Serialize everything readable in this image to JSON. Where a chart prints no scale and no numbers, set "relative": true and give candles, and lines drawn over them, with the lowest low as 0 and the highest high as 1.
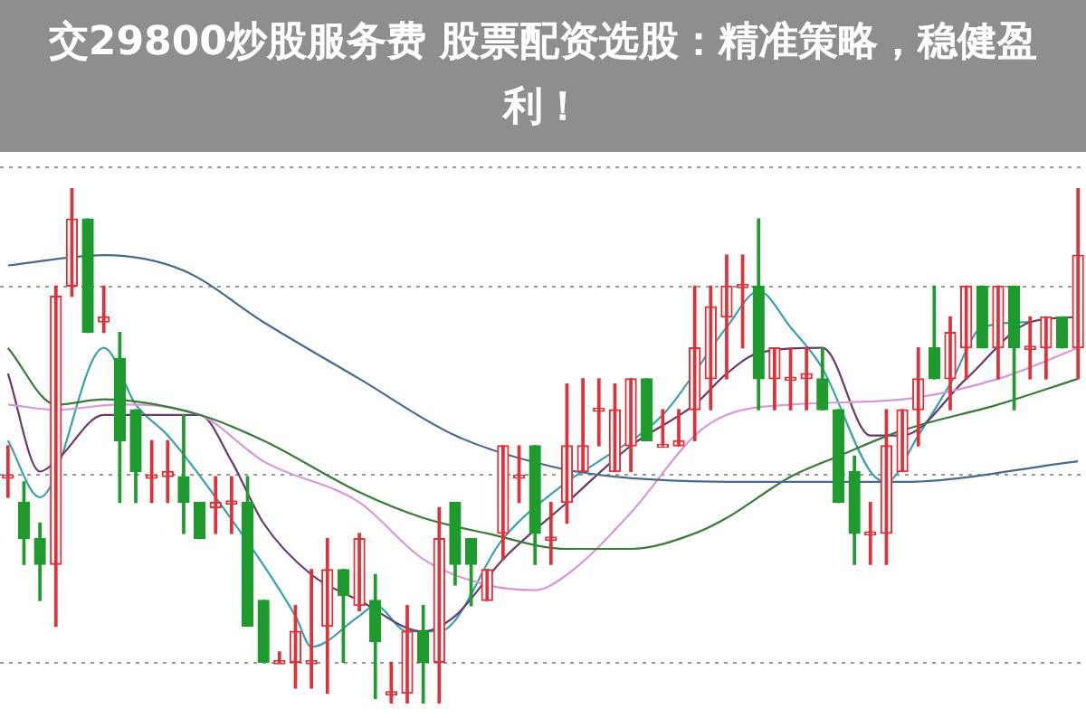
{
  "chart_data": {
    "type": "candlestick",
    "relative": true,
    "title": "交29800炒股服务费 股票配资选股：精准策略，稳健盈利！",
    "grid": "y",
    "marker": "none",
    "categories": [
      null,
      null,
      null,
      null,
      null,
      null,
      null,
      null,
      null,
      null,
      null,
      null,
      null,
      null,
      null,
      null,
      null,
      null,
      null,
      null,
      null,
      null,
      null,
      null,
      null,
      null,
      null,
      null,
      null,
      null,
      null,
      null,
      null,
      null,
      null,
      null,
      null,
      null,
      null,
      null,
      null,
      null,
      null,
      null,
      null,
      null,
      null,
      null,
      null,
      null,
      null,
      null,
      null,
      null,
      null,
      null,
      null,
      null,
      null,
      null,
      null,
      null,
      null,
      null,
      null,
      null,
      null,
      null
    ],
    "ohlc": [
      [
        0.44,
        0.5,
        0.4,
        0.44
      ],
      [
        0.39,
        0.43,
        0.27,
        0.32
      ],
      [
        0.32,
        0.35,
        0.2,
        0.27
      ],
      [
        0.27,
        0.81,
        0.15,
        0.79
      ],
      [
        0.81,
        1.0,
        0.79,
        0.94
      ],
      [
        0.94,
        0.94,
        0.72,
        0.72
      ],
      [
        0.74,
        0.81,
        0.72,
        0.75
      ],
      [
        0.67,
        0.72,
        0.39,
        0.51
      ],
      [
        0.57,
        0.57,
        0.39,
        0.45
      ],
      [
        0.44,
        0.51,
        0.39,
        0.44
      ],
      [
        0.44,
        0.51,
        0.39,
        0.45
      ],
      [
        0.44,
        0.56,
        0.33,
        0.39
      ],
      [
        0.39,
        0.39,
        0.32,
        0.32
      ],
      [
        0.38,
        0.44,
        0.33,
        0.39
      ],
      [
        0.39,
        0.44,
        0.33,
        0.39
      ],
      [
        0.39,
        0.44,
        0.15,
        0.15
      ],
      [
        0.2,
        0.2,
        0.08,
        0.08
      ],
      [
        0.08,
        0.1,
        0.08,
        0.08
      ],
      [
        0.08,
        0.19,
        0.03,
        0.14
      ],
      [
        0.08,
        0.26,
        0.03,
        0.08
      ],
      [
        0.15,
        0.32,
        0.02,
        0.26
      ],
      [
        0.26,
        0.26,
        0.08,
        0.21
      ],
      [
        0.19,
        0.33,
        0.18,
        0.32
      ],
      [
        0.2,
        0.25,
        0.01,
        0.12
      ],
      [
        0.02,
        0.08,
        0.0,
        0.02
      ],
      [
        0.02,
        0.19,
        0.0,
        0.14
      ],
      [
        0.14,
        0.19,
        0.0,
        0.08
      ],
      [
        0.08,
        0.38,
        0.0,
        0.32
      ],
      [
        0.39,
        0.39,
        0.23,
        0.27
      ],
      [
        0.32,
        0.32,
        0.19,
        0.27
      ],
      [
        0.2,
        0.26,
        0.2,
        0.26
      ],
      [
        0.33,
        0.5,
        0.28,
        0.5
      ],
      [
        0.44,
        0.5,
        0.39,
        0.44
      ],
      [
        0.5,
        0.5,
        0.27,
        0.33
      ],
      [
        0.32,
        0.39,
        0.27,
        0.32
      ],
      [
        0.39,
        0.62,
        0.35,
        0.5
      ],
      [
        0.45,
        0.63,
        0.45,
        0.5
      ],
      [
        0.57,
        0.63,
        0.5,
        0.57
      ],
      [
        0.45,
        0.62,
        0.45,
        0.57
      ],
      [
        0.5,
        0.63,
        0.45,
        0.63
      ],
      [
        0.63,
        0.63,
        0.51,
        0.51
      ],
      [
        0.5,
        0.57,
        0.5,
        0.5
      ],
      [
        0.5,
        0.57,
        0.5,
        0.51
      ],
      [
        0.57,
        0.81,
        0.51,
        0.69
      ],
      [
        0.63,
        0.81,
        0.57,
        0.77
      ],
      [
        0.75,
        0.87,
        0.63,
        0.81
      ],
      [
        0.81,
        0.87,
        0.69,
        0.81
      ],
      [
        0.81,
        0.94,
        0.57,
        0.63
      ],
      [
        0.63,
        0.69,
        0.57,
        0.69
      ],
      [
        0.63,
        0.69,
        0.57,
        0.63
      ],
      [
        0.63,
        0.69,
        0.57,
        0.64
      ],
      [
        0.63,
        0.69,
        0.57,
        0.57
      ],
      [
        0.57,
        0.57,
        0.39,
        0.39
      ],
      [
        0.45,
        0.48,
        0.27,
        0.33
      ],
      [
        0.33,
        0.39,
        0.27,
        0.33
      ],
      [
        0.33,
        0.57,
        0.27,
        0.5
      ],
      [
        0.45,
        0.57,
        0.45,
        0.57
      ],
      [
        0.57,
        0.69,
        0.5,
        0.63
      ],
      [
        0.69,
        0.81,
        0.63,
        0.63
      ],
      [
        0.63,
        0.75,
        0.57,
        0.72
      ],
      [
        0.69,
        0.81,
        0.63,
        0.81
      ],
      [
        0.81,
        0.81,
        0.69,
        0.69
      ],
      [
        0.69,
        0.81,
        0.63,
        0.81
      ],
      [
        0.81,
        0.81,
        0.57,
        0.69
      ],
      [
        0.69,
        0.75,
        0.63,
        0.69
      ],
      [
        0.69,
        0.75,
        0.63,
        0.75
      ],
      [
        0.75,
        0.75,
        0.69,
        0.69
      ],
      [
        0.69,
        1.0,
        0.63,
        0.87
      ]
    ],
    "series": [
      {
        "type": "line",
        "color": "#4a6a8a",
        "values": [
          0.85,
          null,
          null,
          null,
          null,
          null,
          0.87,
          null,
          null,
          null,
          null,
          0.84,
          null,
          null,
          null,
          null,
          0.74,
          null,
          null,
          null,
          null,
          null,
          0.63,
          null,
          null,
          null,
          null,
          null,
          0.52,
          null,
          null,
          null,
          null,
          null,
          0.46,
          null,
          null,
          null,
          0.44,
          null,
          null,
          null,
          null,
          null,
          null,
          null,
          0.43,
          null,
          null,
          null,
          null,
          null,
          null,
          null,
          null,
          null,
          0.43,
          null,
          null,
          null,
          null,
          null,
          null,
          null,
          null,
          null,
          null,
          0.47
        ]
      },
      {
        "type": "line",
        "color": "#3a7a3a",
        "values": [
          0.69,
          null,
          null,
          0.58,
          null,
          null,
          0.59,
          null,
          null,
          null,
          null,
          null,
          0.56,
          null,
          null,
          null,
          0.51,
          null,
          null,
          null,
          null,
          null,
          0.41,
          null,
          null,
          null,
          0.36,
          null,
          null,
          null,
          0.33,
          null,
          null,
          null,
          null,
          0.3,
          null,
          null,
          null,
          0.3,
          null,
          null,
          null,
          0.33,
          null,
          0.36,
          null,
          null,
          null,
          0.44,
          null,
          null,
          0.48,
          null,
          null,
          null,
          0.53,
          null,
          null,
          null,
          null,
          null,
          0.58,
          null,
          null,
          null,
          null,
          0.63
        ]
      },
      {
        "type": "line",
        "color": "#d898d8",
        "values": [
          0.58,
          null,
          null,
          0.57,
          null,
          null,
          null,
          0.58,
          null,
          null,
          null,
          null,
          0.56,
          null,
          null,
          null,
          0.47,
          null,
          null,
          null,
          null,
          null,
          0.39,
          null,
          null,
          null,
          0.28,
          null,
          null,
          null,
          0.23,
          null,
          null,
          0.22,
          null,
          0.25,
          null,
          null,
          null,
          0.37,
          null,
          null,
          null,
          0.52,
          null,
          0.56,
          null,
          null,
          null,
          0.58,
          null,
          null,
          null,
          null,
          null,
          null,
          0.59,
          null,
          null,
          null,
          null,
          null,
          0.63,
          null,
          null,
          null,
          null,
          0.69
        ]
      },
      {
        "type": "line",
        "color": "#6a3a6a",
        "values": [
          0.64,
          null,
          0.45,
          0.47,
          null,
          null,
          0.56,
          null,
          null,
          0.56,
          null,
          null,
          0.56,
          null,
          0.47,
          null,
          0.35,
          null,
          null,
          0.25,
          null,
          null,
          0.2,
          null,
          null,
          null,
          0.14,
          null,
          0.17,
          null,
          null,
          0.28,
          null,
          null,
          null,
          0.39,
          null,
          null,
          null,
          0.5,
          null,
          null,
          null,
          0.58,
          null,
          0.64,
          null,
          0.68,
          null,
          null,
          null,
          0.69,
          null,
          null,
          0.52,
          null,
          0.52,
          null,
          null,
          null,
          0.63,
          null,
          null,
          null,
          0.74,
          null,
          null,
          0.75
        ]
      },
      {
        "type": "line",
        "color": "#3aa0b0",
        "values": [
          0.51,
          null,
          0.4,
          null,
          null,
          null,
          0.69,
          null,
          0.58,
          null,
          0.52,
          null,
          null,
          0.4,
          null,
          null,
          null,
          null,
          0.17,
          0.11,
          null,
          null,
          0.17,
          0.19,
          null,
          0.14,
          null,
          0.14,
          null,
          null,
          null,
          0.32,
          null,
          null,
          null,
          0.43,
          null,
          0.47,
          null,
          null,
          null,
          0.56,
          null,
          null,
          null,
          0.73,
          null,
          0.8,
          null,
          0.73,
          null,
          0.65,
          null,
          null,
          0.45,
          0.43,
          null,
          0.52,
          null,
          0.62,
          null,
          0.73,
          null,
          null,
          0.74,
          null,
          null,
          null
        ]
      }
    ]
  }
}
